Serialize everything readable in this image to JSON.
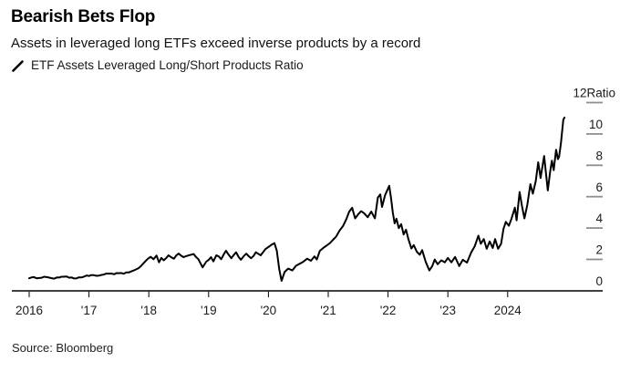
{
  "header": {
    "title": "Bearish Bets Flop",
    "subtitle": "Assets in leveraged long ETFs exceed inverse products by a record"
  },
  "legend": {
    "series_label": "ETF Assets Leveraged Long/Short Products Ratio"
  },
  "source": "Source: Bloomberg",
  "chart_data": {
    "type": "line",
    "title": "Bearish Bets Flop",
    "subtitle": "Assets in leveraged long ETFs exceed inverse products by a record",
    "grid": false,
    "legend_position": "top-left",
    "colors": {
      "line": "#000000",
      "axis": "#000000",
      "tick_dash": "#8f8f8f",
      "text": "#1a1a1a"
    },
    "x_axis": {
      "range": [
        2015.71,
        2025.59
      ],
      "ticks": [
        {
          "year": 2016,
          "label": "2016"
        },
        {
          "year": 2017,
          "label": "'17"
        },
        {
          "year": 2018,
          "label": "'18"
        },
        {
          "year": 2019,
          "label": "'19"
        },
        {
          "year": 2020,
          "label": "'20"
        },
        {
          "year": 2021,
          "label": "'21"
        },
        {
          "year": 2022,
          "label": "'22"
        },
        {
          "year": 2023,
          "label": "'23"
        },
        {
          "year": 2024,
          "label": "2024"
        }
      ]
    },
    "y_axis": {
      "side": "right",
      "unit": "Ratio",
      "range": [
        0,
        12.7
      ],
      "ticks": [
        0,
        2,
        4,
        6,
        8,
        10,
        12
      ]
    },
    "series": [
      {
        "name": "ETF Assets Leveraged Long/Short Products Ratio",
        "points": [
          [
            2016.0,
            0.8
          ],
          [
            2016.08,
            0.88
          ],
          [
            2016.17,
            0.82
          ],
          [
            2016.25,
            0.9
          ],
          [
            2016.33,
            0.85
          ],
          [
            2016.42,
            0.78
          ],
          [
            2016.5,
            0.85
          ],
          [
            2016.58,
            0.9
          ],
          [
            2016.67,
            0.84
          ],
          [
            2016.75,
            0.79
          ],
          [
            2016.83,
            0.86
          ],
          [
            2016.92,
            0.91
          ],
          [
            2017.0,
            0.95
          ],
          [
            2017.08,
            1.0
          ],
          [
            2017.17,
            0.97
          ],
          [
            2017.25,
            1.04
          ],
          [
            2017.33,
            1.1
          ],
          [
            2017.42,
            1.06
          ],
          [
            2017.5,
            1.13
          ],
          [
            2017.58,
            1.09
          ],
          [
            2017.67,
            1.18
          ],
          [
            2017.75,
            1.3
          ],
          [
            2017.83,
            1.45
          ],
          [
            2017.88,
            1.62
          ],
          [
            2017.94,
            1.88
          ],
          [
            2018.03,
            2.17
          ],
          [
            2018.08,
            2.02
          ],
          [
            2018.13,
            2.25
          ],
          [
            2018.17,
            1.82
          ],
          [
            2018.21,
            2.1
          ],
          [
            2018.25,
            1.95
          ],
          [
            2018.33,
            2.27
          ],
          [
            2018.42,
            2.05
          ],
          [
            2018.5,
            2.38
          ],
          [
            2018.58,
            2.15
          ],
          [
            2018.67,
            2.27
          ],
          [
            2018.75,
            2.35
          ],
          [
            2018.83,
            2.02
          ],
          [
            2018.9,
            1.5
          ],
          [
            2018.96,
            1.86
          ],
          [
            2019.04,
            2.15
          ],
          [
            2019.08,
            1.88
          ],
          [
            2019.13,
            2.27
          ],
          [
            2019.21,
            2.02
          ],
          [
            2019.29,
            2.56
          ],
          [
            2019.38,
            2.08
          ],
          [
            2019.46,
            2.46
          ],
          [
            2019.54,
            1.98
          ],
          [
            2019.63,
            2.37
          ],
          [
            2019.71,
            2.08
          ],
          [
            2019.79,
            2.46
          ],
          [
            2019.87,
            2.27
          ],
          [
            2019.95,
            2.66
          ],
          [
            2020.02,
            2.85
          ],
          [
            2020.1,
            3.04
          ],
          [
            2020.14,
            2.56
          ],
          [
            2020.18,
            1.4
          ],
          [
            2020.22,
            0.64
          ],
          [
            2020.27,
            1.2
          ],
          [
            2020.33,
            1.42
          ],
          [
            2020.4,
            1.3
          ],
          [
            2020.46,
            1.6
          ],
          [
            2020.52,
            1.72
          ],
          [
            2020.58,
            1.85
          ],
          [
            2020.65,
            2.05
          ],
          [
            2020.71,
            1.92
          ],
          [
            2020.77,
            2.2
          ],
          [
            2020.81,
            2.0
          ],
          [
            2020.86,
            2.55
          ],
          [
            2020.92,
            2.75
          ],
          [
            2020.97,
            2.88
          ],
          [
            2021.03,
            3.05
          ],
          [
            2021.08,
            3.25
          ],
          [
            2021.13,
            3.45
          ],
          [
            2021.19,
            3.85
          ],
          [
            2021.25,
            4.15
          ],
          [
            2021.3,
            4.55
          ],
          [
            2021.35,
            5.05
          ],
          [
            2021.4,
            5.3
          ],
          [
            2021.45,
            4.62
          ],
          [
            2021.5,
            4.88
          ],
          [
            2021.55,
            5.08
          ],
          [
            2021.6,
            4.95
          ],
          [
            2021.66,
            4.7
          ],
          [
            2021.72,
            5.05
          ],
          [
            2021.78,
            4.62
          ],
          [
            2021.83,
            5.95
          ],
          [
            2021.87,
            6.15
          ],
          [
            2021.9,
            5.35
          ],
          [
            2021.95,
            6.1
          ],
          [
            2022.02,
            6.7
          ],
          [
            2022.05,
            5.9
          ],
          [
            2022.08,
            5.0
          ],
          [
            2022.11,
            4.3
          ],
          [
            2022.14,
            4.6
          ],
          [
            2022.18,
            4.0
          ],
          [
            2022.22,
            4.25
          ],
          [
            2022.26,
            3.6
          ],
          [
            2022.3,
            3.9
          ],
          [
            2022.34,
            3.3
          ],
          [
            2022.39,
            2.7
          ],
          [
            2022.43,
            2.92
          ],
          [
            2022.48,
            2.5
          ],
          [
            2022.53,
            2.3
          ],
          [
            2022.57,
            2.6
          ],
          [
            2022.63,
            1.85
          ],
          [
            2022.69,
            1.3
          ],
          [
            2022.74,
            1.58
          ],
          [
            2022.78,
            2.0
          ],
          [
            2022.83,
            1.7
          ],
          [
            2022.89,
            1.95
          ],
          [
            2022.95,
            1.82
          ],
          [
            2023.0,
            2.1
          ],
          [
            2023.06,
            1.82
          ],
          [
            2023.12,
            2.16
          ],
          [
            2023.19,
            1.58
          ],
          [
            2023.25,
            1.98
          ],
          [
            2023.32,
            1.8
          ],
          [
            2023.39,
            2.45
          ],
          [
            2023.45,
            2.85
          ],
          [
            2023.51,
            3.52
          ],
          [
            2023.55,
            3.0
          ],
          [
            2023.6,
            3.3
          ],
          [
            2023.65,
            2.68
          ],
          [
            2023.7,
            3.15
          ],
          [
            2023.75,
            2.73
          ],
          [
            2023.79,
            3.3
          ],
          [
            2023.84,
            2.68
          ],
          [
            2023.89,
            3.0
          ],
          [
            2023.93,
            3.95
          ],
          [
            2023.97,
            4.4
          ],
          [
            2024.02,
            4.15
          ],
          [
            2024.06,
            4.55
          ],
          [
            2024.12,
            5.3
          ],
          [
            2024.15,
            4.5
          ],
          [
            2024.2,
            6.3
          ],
          [
            2024.24,
            5.4
          ],
          [
            2024.28,
            4.62
          ],
          [
            2024.33,
            5.5
          ],
          [
            2024.38,
            6.8
          ],
          [
            2024.42,
            6.2
          ],
          [
            2024.47,
            7.0
          ],
          [
            2024.51,
            8.2
          ],
          [
            2024.55,
            7.2
          ],
          [
            2024.61,
            8.6
          ],
          [
            2024.67,
            6.4
          ],
          [
            2024.71,
            7.6
          ],
          [
            2024.74,
            8.3
          ],
          [
            2024.77,
            7.7
          ],
          [
            2024.81,
            9.0
          ],
          [
            2024.84,
            8.4
          ],
          [
            2024.86,
            8.55
          ],
          [
            2024.89,
            9.4
          ],
          [
            2024.93,
            10.9
          ],
          [
            2024.95,
            11.05
          ]
        ]
      }
    ]
  }
}
